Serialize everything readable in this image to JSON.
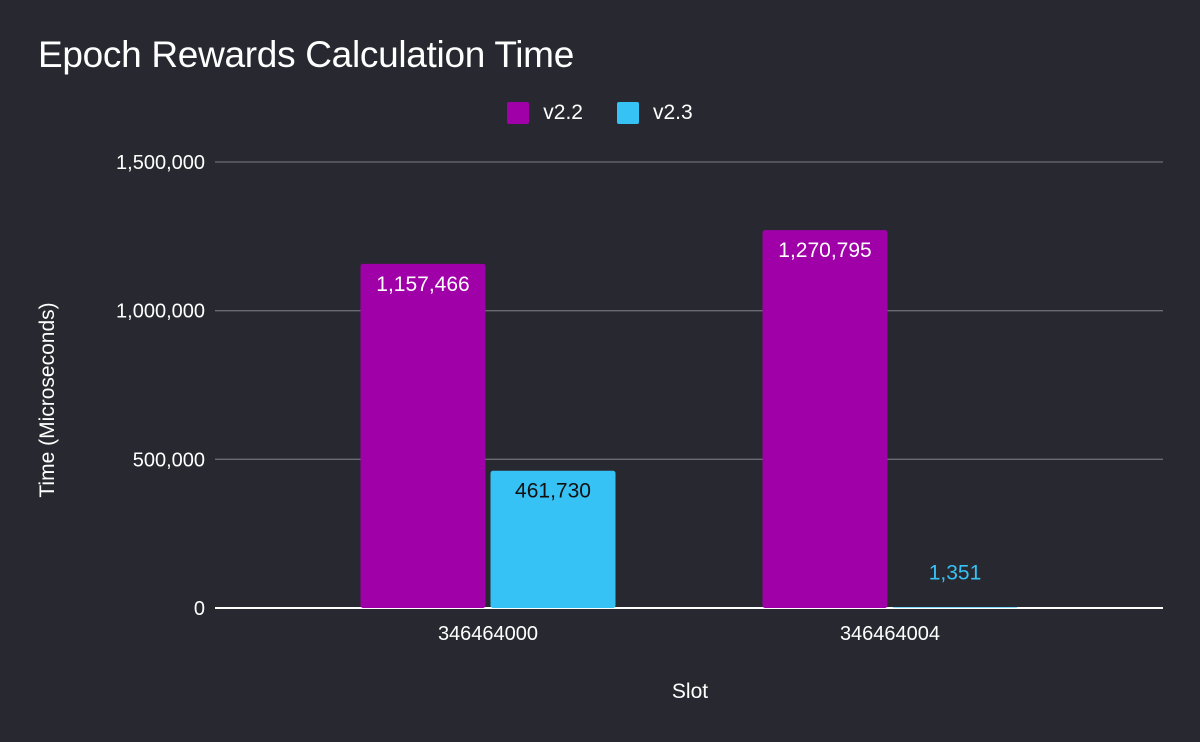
{
  "chart_data": {
    "type": "bar",
    "title": "Epoch Rewards Calculation Time",
    "xlabel": "Slot",
    "ylabel": "Time (Microseconds)",
    "categories": [
      "346464000",
      "346464004"
    ],
    "series": [
      {
        "name": "v2.2",
        "color": "#a000a8",
        "values": [
          1157466,
          1270795
        ],
        "labels": [
          "1,157,466",
          "1,270,795"
        ]
      },
      {
        "name": "v2.3",
        "color": "#36c2f5",
        "values": [
          461730,
          1351
        ],
        "labels": [
          "461,730",
          "1,351"
        ]
      }
    ],
    "ylim": [
      0,
      1500000
    ],
    "yticks": [
      0,
      500000,
      1000000,
      1500000
    ],
    "ytick_labels": [
      "0",
      "500,000",
      "1,000,000",
      "1,500,000"
    ],
    "grid": true,
    "legend_position": "top-center"
  },
  "colors": {
    "background": "#282830",
    "gridline": "#6b6b73",
    "axis_line": "#ffffff",
    "label_on_light": "#111111",
    "label_on_dark": "#ffffff"
  }
}
